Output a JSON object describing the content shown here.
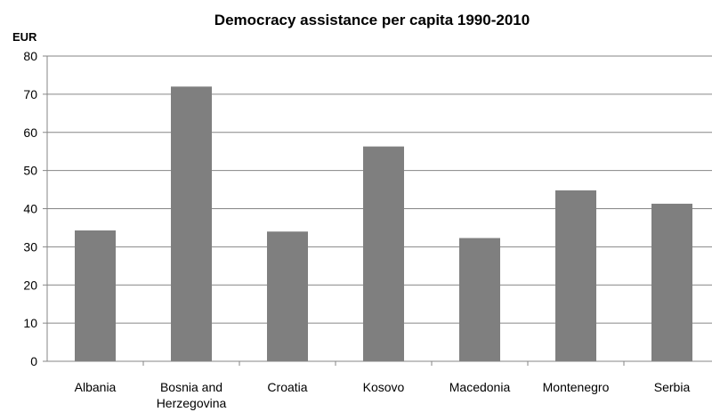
{
  "chart_data": {
    "type": "bar",
    "title": "Democracy assistance per capita 1990-2010",
    "ylabel": "EUR",
    "xlabel": "",
    "categories": [
      [
        "Albania"
      ],
      [
        "Bosnia and",
        "Herzegovina"
      ],
      [
        "Croatia"
      ],
      [
        "Kosovo"
      ],
      [
        "Macedonia"
      ],
      [
        "Montenegro"
      ],
      [
        "Serbia"
      ]
    ],
    "values": [
      34.3,
      72,
      34,
      56.3,
      32.3,
      44.8,
      41.3
    ],
    "ylim": [
      0,
      80
    ],
    "yticks": [
      "0",
      "10",
      "20",
      "30",
      "40",
      "50",
      "60",
      "70",
      "80"
    ],
    "grid": true,
    "colors": {
      "bar": "#7f7f7f",
      "grid": "#868686"
    }
  }
}
